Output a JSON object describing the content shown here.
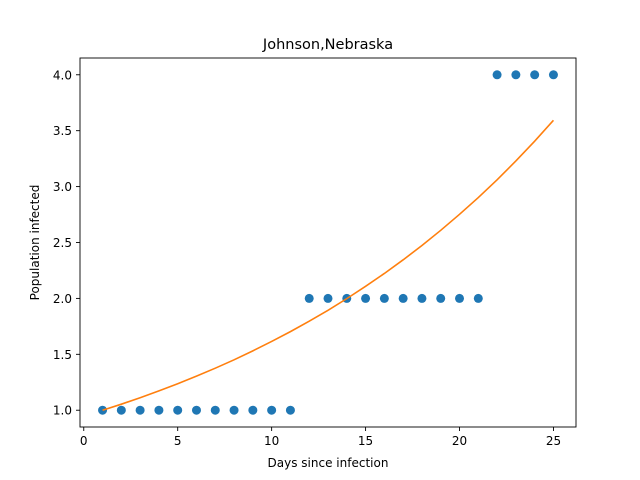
{
  "chart_data": {
    "type": "scatter",
    "title": "Johnson,Nebraska",
    "xlabel": "Days since infection",
    "ylabel": "Population infected",
    "xlim": [
      -0.2,
      26.2
    ],
    "ylim": [
      0.85,
      4.15
    ],
    "xticks": [
      0,
      5,
      10,
      15,
      20,
      25
    ],
    "xtick_labels": [
      "0",
      "5",
      "10",
      "15",
      "20",
      "25"
    ],
    "yticks": [
      1.0,
      1.5,
      2.0,
      2.5,
      3.0,
      3.5,
      4.0
    ],
    "ytick_labels": [
      "1.0",
      "1.5",
      "2.0",
      "2.5",
      "3.0",
      "3.5",
      "4.0"
    ],
    "grid": false,
    "series": [
      {
        "kind": "scatter",
        "color": "#1f77b4",
        "x": [
          1,
          2,
          3,
          4,
          5,
          6,
          7,
          8,
          9,
          10,
          11,
          12,
          13,
          14,
          15,
          16,
          17,
          18,
          19,
          20,
          21,
          22,
          23,
          24,
          25
        ],
        "y": [
          1,
          1,
          1,
          1,
          1,
          1,
          1,
          1,
          1,
          1,
          1,
          2,
          2,
          2,
          2,
          2,
          2,
          2,
          2,
          2,
          2,
          4,
          4,
          4,
          4
        ]
      },
      {
        "kind": "line",
        "color": "#ff7f0e",
        "x": [
          1,
          2,
          3,
          4,
          5,
          6,
          7,
          8,
          9,
          10,
          11,
          12,
          13,
          14,
          15,
          16,
          17,
          18,
          19,
          20,
          21,
          22,
          23,
          24,
          25
        ],
        "y": [
          1.0,
          1.054,
          1.112,
          1.173,
          1.237,
          1.305,
          1.376,
          1.451,
          1.531,
          1.615,
          1.703,
          1.796,
          1.894,
          1.998,
          2.108,
          2.223,
          2.345,
          2.473,
          2.609,
          2.752,
          2.902,
          3.061,
          3.229,
          3.406,
          3.593
        ]
      }
    ]
  }
}
